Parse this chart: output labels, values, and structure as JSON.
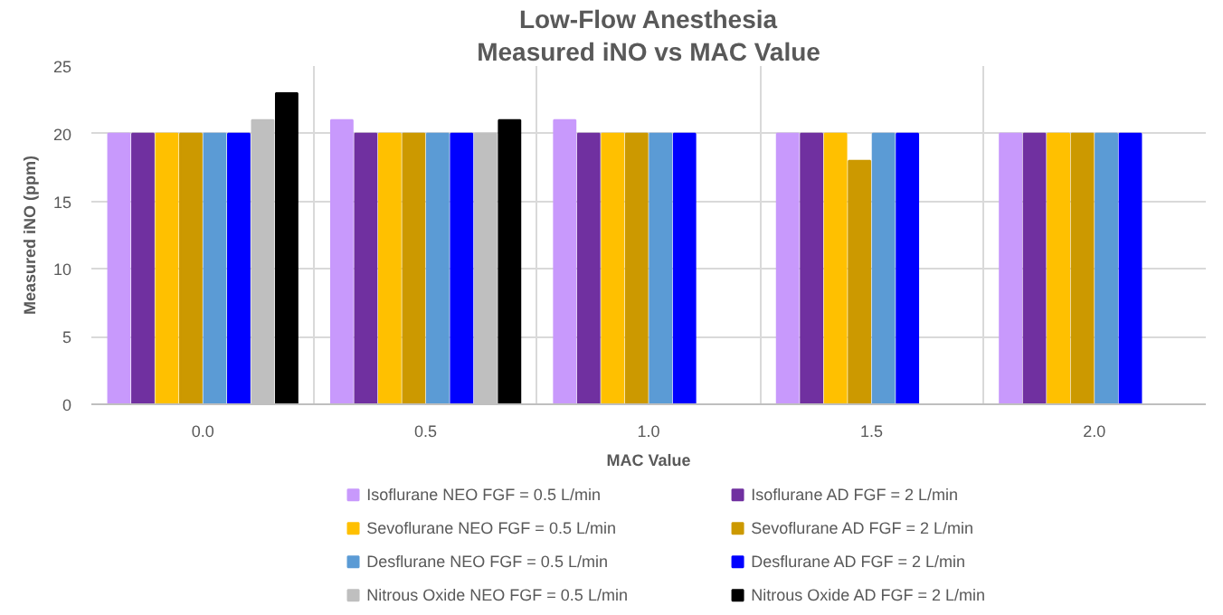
{
  "chart_data": {
    "type": "bar",
    "title": "Low-Flow Anesthesia",
    "subtitle": "Measured iNO vs MAC Value",
    "xlabel": "MAC Value",
    "ylabel": "Measured iNO (ppm)",
    "categories": [
      "0.0",
      "0.5",
      "1.0",
      "1.5",
      "2.0"
    ],
    "series": [
      {
        "name": "Isoflurane NEO FGF = 0.5 L/min",
        "color": "#c899fc",
        "values": [
          20,
          21,
          21,
          20,
          20
        ]
      },
      {
        "name": "Isoflurane AD FGF = 2 L/min",
        "color": "#7030a0",
        "values": [
          20,
          20,
          20,
          20,
          20
        ]
      },
      {
        "name": "Sevoflurane NEO FGF = 0.5 L/min",
        "color": "#ffc000",
        "values": [
          20,
          20,
          20,
          20,
          20
        ]
      },
      {
        "name": "Sevoflurane AD FGF = 2 L/min",
        "color": "#cc9900",
        "values": [
          20,
          20,
          20,
          18,
          20
        ]
      },
      {
        "name": "Desflurane NEO FGF = 0.5 L/min",
        "color": "#5b9bd5",
        "values": [
          20,
          20,
          20,
          20,
          20
        ]
      },
      {
        "name": "Desflurane AD FGF = 2 L/min",
        "color": "#0000ff",
        "values": [
          20,
          20,
          20,
          20,
          20
        ]
      },
      {
        "name": "Nitrous Oxide NEO FGF = 0.5 L/min",
        "color": "#bfbfbf",
        "values": [
          21,
          20,
          null,
          null,
          null
        ]
      },
      {
        "name": "Nitrous Oxide AD FGF = 2 L/min",
        "color": "#000000",
        "values": [
          23,
          21,
          null,
          null,
          null
        ]
      }
    ],
    "ylim": [
      0,
      25
    ],
    "yticks": [
      0,
      5,
      10,
      15,
      20,
      25
    ],
    "grid": true,
    "legend": "bottom"
  }
}
